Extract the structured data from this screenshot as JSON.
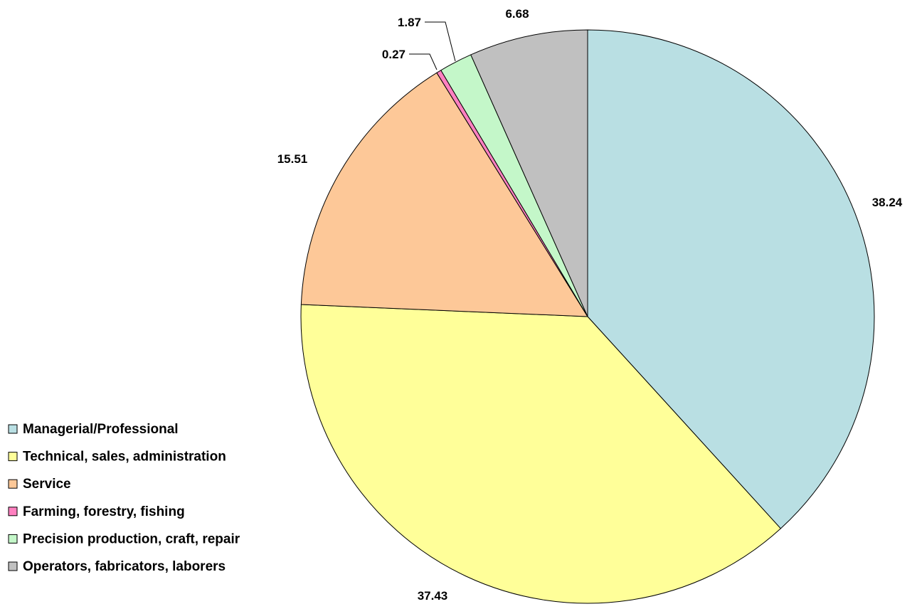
{
  "chart_data": {
    "type": "pie",
    "title": "",
    "categories": [
      "Managerial/Professional",
      "Technical, sales, administration",
      "Service",
      "Farming, forestry, fishing",
      "Precision production, craft, repair",
      "Operators, fabricators, laborers"
    ],
    "values": [
      38.24,
      37.43,
      15.51,
      0.27,
      1.87,
      6.68
    ],
    "data_labels": [
      "38.24",
      "37.43",
      "15.51",
      "0.27",
      "1.87",
      "6.68"
    ],
    "colors": [
      "#b9dfe3",
      "#ffff99",
      "#fdc898",
      "#ff80c0",
      "#c4f7c9",
      "#c0c0c0"
    ],
    "legend_position": "left",
    "start_angle": "12 o'clock",
    "direction": "clockwise"
  }
}
